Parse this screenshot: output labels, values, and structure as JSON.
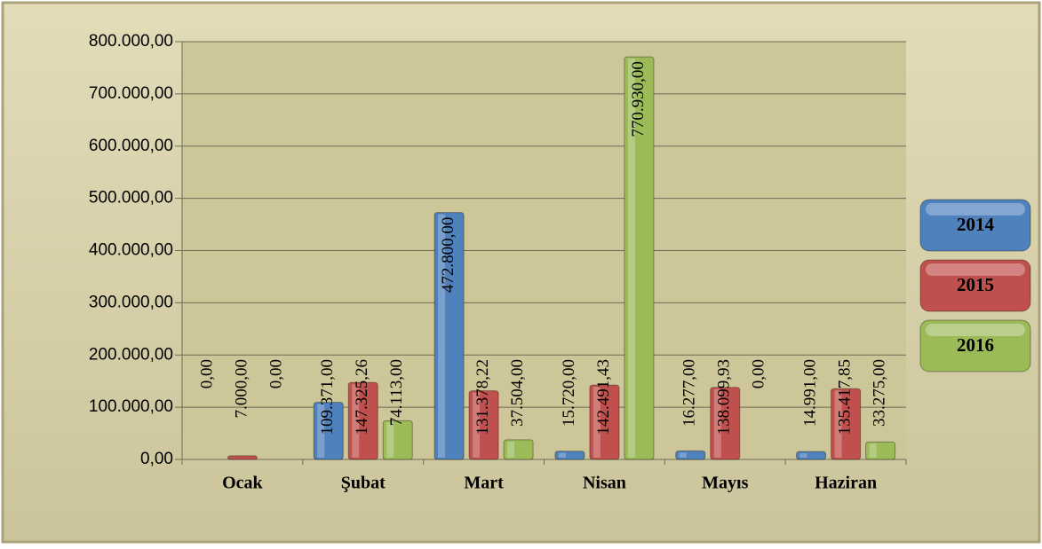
{
  "chart_data": {
    "type": "bar",
    "categories": [
      "Ocak",
      "Şubat",
      "Mart",
      "Nisan",
      "Mayıs",
      "Haziran"
    ],
    "series": [
      {
        "name": "2014",
        "color": "#4f81bd",
        "values": [
          0,
          109371,
          472800,
          15720,
          16277,
          14991
        ],
        "value_labels": [
          "0,00",
          "109.371,00",
          "472.800,00",
          "15.720,00",
          "16.277,00",
          "14.991,00"
        ]
      },
      {
        "name": "2015",
        "color": "#c0504d",
        "values": [
          7000,
          147325.26,
          131378.22,
          142491.43,
          138099.93,
          135417.85
        ],
        "value_labels": [
          "7.000,00",
          "147.325,26",
          "131.378,22",
          "142.491,43",
          "138.099,93",
          "135.417,85"
        ]
      },
      {
        "name": "2016",
        "color": "#9bbb59",
        "values": [
          0,
          74113,
          37504,
          770930,
          0,
          33275
        ],
        "value_labels": [
          "0,00",
          "74.113,00",
          "37.504,00",
          "770.930,00",
          "0,00",
          "33.275,00"
        ]
      }
    ],
    "ylim": [
      0,
      800000
    ],
    "yticks": [
      {
        "value": 0,
        "label": "0,00"
      },
      {
        "value": 100000,
        "label": "100.000,00"
      },
      {
        "value": 200000,
        "label": "200.000,00"
      },
      {
        "value": 300000,
        "label": "300.000,00"
      },
      {
        "value": 400000,
        "label": "400.000,00"
      },
      {
        "value": 500000,
        "label": "500.000,00"
      },
      {
        "value": 600000,
        "label": "600.000,00"
      },
      {
        "value": 700000,
        "label": "700.000,00"
      },
      {
        "value": 800000,
        "label": "800.000,00"
      }
    ],
    "grid": true,
    "legend": "right"
  }
}
